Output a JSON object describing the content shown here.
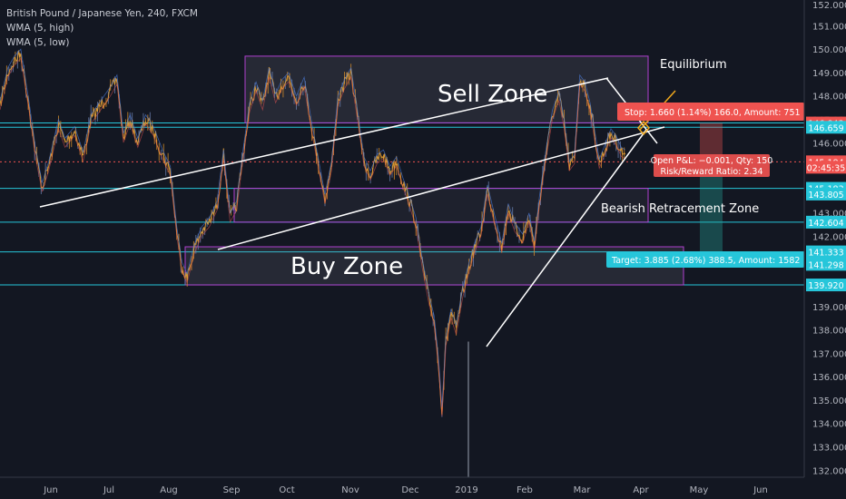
{
  "legend": {
    "symbol": "British Pound / Japanese Yen, 240, FXCM",
    "indicator_high": "WMA (5, high)",
    "indicator_low": "WMA (5, low)"
  },
  "chart_data": {
    "type": "line",
    "title": "British Pound / Japanese Yen, 240, FXCM",
    "series": [
      {
        "x": [
          "May",
          "Jun",
          "Jul",
          "Aug",
          "Sep",
          "Oct",
          "Nov",
          "Dec",
          "2019",
          "Feb",
          "Mar",
          "Apr"
        ],
        "values": [
          148.5,
          147.0,
          148.3,
          145.0,
          147.5,
          148.5,
          146.5,
          144.0,
          137.5,
          143.5,
          147.5,
          145.2
        ]
      }
    ],
    "path_points": [
      [
        0,
        147.6
      ],
      [
        0.012,
        149.0
      ],
      [
        0.022,
        149.5
      ],
      [
        0.032,
        149.8
      ],
      [
        0.045,
        147.5
      ],
      [
        0.055,
        145.5
      ],
      [
        0.065,
        144.1
      ],
      [
        0.075,
        145.0
      ],
      [
        0.09,
        146.8
      ],
      [
        0.1,
        146.0
      ],
      [
        0.115,
        146.5
      ],
      [
        0.128,
        145.4
      ],
      [
        0.14,
        147.0
      ],
      [
        0.155,
        147.6
      ],
      [
        0.17,
        148.2
      ],
      [
        0.18,
        148.7
      ],
      [
        0.19,
        146.2
      ],
      [
        0.2,
        147.0
      ],
      [
        0.212,
        146.0
      ],
      [
        0.224,
        147.0
      ],
      [
        0.236,
        146.5
      ],
      [
        0.25,
        145.5
      ],
      [
        0.262,
        144.8
      ],
      [
        0.272,
        142.2
      ],
      [
        0.28,
        140.7
      ],
      [
        0.288,
        140.2
      ],
      [
        0.298,
        141.4
      ],
      [
        0.31,
        142.2
      ],
      [
        0.322,
        142.6
      ],
      [
        0.334,
        143.3
      ],
      [
        0.344,
        145.5
      ],
      [
        0.354,
        142.8
      ],
      [
        0.364,
        143.3
      ],
      [
        0.374,
        145.5
      ],
      [
        0.384,
        147.5
      ],
      [
        0.394,
        148.4
      ],
      [
        0.404,
        147.6
      ],
      [
        0.414,
        149.0
      ],
      [
        0.424,
        147.9
      ],
      [
        0.434,
        148.5
      ],
      [
        0.444,
        148.8
      ],
      [
        0.456,
        147.8
      ],
      [
        0.468,
        148.6
      ],
      [
        0.48,
        146.6
      ],
      [
        0.49,
        145.1
      ],
      [
        0.5,
        143.6
      ],
      [
        0.51,
        145.0
      ],
      [
        0.52,
        147.8
      ],
      [
        0.53,
        148.5
      ],
      [
        0.54,
        149.0
      ],
      [
        0.55,
        147.2
      ],
      [
        0.56,
        145.2
      ],
      [
        0.57,
        144.6
      ],
      [
        0.58,
        145.3
      ],
      [
        0.59,
        145.5
      ],
      [
        0.6,
        144.8
      ],
      [
        0.61,
        145.2
      ],
      [
        0.62,
        144.3
      ],
      [
        0.63,
        143.5
      ],
      [
        0.64,
        142.6
      ],
      [
        0.65,
        140.8
      ],
      [
        0.66,
        139.3
      ],
      [
        0.668,
        138.4
      ],
      [
        0.675,
        136.5
      ],
      [
        0.68,
        134.5
      ],
      [
        0.686,
        137.5
      ],
      [
        0.694,
        138.7
      ],
      [
        0.702,
        138.0
      ],
      [
        0.712,
        139.6
      ],
      [
        0.72,
        140.5
      ],
      [
        0.73,
        141.5
      ],
      [
        0.74,
        142.2
      ],
      [
        0.75,
        144.0
      ],
      [
        0.762,
        142.6
      ],
      [
        0.772,
        141.5
      ],
      [
        0.782,
        143.2
      ],
      [
        0.792,
        142.4
      ],
      [
        0.804,
        141.9
      ],
      [
        0.814,
        142.8
      ],
      [
        0.822,
        141.6
      ],
      [
        0.83,
        143.5
      ],
      [
        0.84,
        145.5
      ],
      [
        0.85,
        147.2
      ],
      [
        0.86,
        148.0
      ],
      [
        0.868,
        146.8
      ],
      [
        0.876,
        145.0
      ],
      [
        0.884,
        145.3
      ],
      [
        0.892,
        148.7
      ],
      [
        0.9,
        148.4
      ],
      [
        0.908,
        147.5
      ],
      [
        0.914,
        146.5
      ],
      [
        0.922,
        145.1
      ],
      [
        0.932,
        145.8
      ],
      [
        0.94,
        146.4
      ],
      [
        0.948,
        146.1
      ],
      [
        0.956,
        145.6
      ],
      [
        0.962,
        145.5
      ]
    ],
    "xlabel": "",
    "ylabel": "",
    "ylim": [
      131.7,
      152.1
    ],
    "x_ticks": [
      "Jun",
      "Jul",
      "Aug",
      "Sep",
      "Oct",
      "Nov",
      "Dec",
      "2019",
      "Feb",
      "Mar",
      "Apr",
      "May",
      "Jun"
    ],
    "y_ticks": [
      "152.000",
      "151.000",
      "150.000",
      "149.000",
      "148.000",
      "147.000",
      "146.000",
      "145.000",
      "144.000",
      "143.000",
      "142.000",
      "141.000",
      "140.000",
      "139.000",
      "138.000",
      "137.000",
      "136.000",
      "135.000",
      "134.000",
      "133.000",
      "132.000"
    ],
    "price_tags": [
      {
        "label": "146.843",
        "price": 146.843,
        "color": "#ef5350"
      },
      {
        "label": "146.659",
        "price": 146.659,
        "color": "#26c6da"
      },
      {
        "label": "145.184",
        "price": 145.184,
        "color": "#ef5350"
      },
      {
        "label": "02:45:35",
        "price": 144.95,
        "color": "#ef5350"
      },
      {
        "label": "145.183",
        "price": 144.05,
        "color": "#26c6da"
      },
      {
        "label": "143.805",
        "price": 143.805,
        "color": "#26c6da"
      },
      {
        "label": "142.604",
        "price": 142.604,
        "color": "#26c6da"
      },
      {
        "label": "141.333",
        "price": 141.333,
        "color": "#26c6da"
      },
      {
        "label": "141.298",
        "price": 140.8,
        "color": "#26c6da"
      },
      {
        "label": "139.920",
        "price": 139.92,
        "color": "#26c6da"
      }
    ],
    "horizontal_levels": [
      146.843,
      146.659,
      144.05,
      142.604,
      141.333,
      139.92
    ],
    "annotations": {
      "sell_zone": "Sell Zone",
      "buy_zone": "Buy Zone",
      "bearish_zone": "Bearish Retracement Zone",
      "equilibrium": "Equilibrium",
      "stop": "Stop: 1.660 (1.14%) 166.0, Amount: 751",
      "open_pnl": "Open P&L: −0.001, Qty: 150",
      "risk_reward": "Risk/Reward Ratio: 2.34",
      "target": "Target: 3.885 (2.68%) 388.5, Amount: 1582"
    },
    "colors": {
      "background": "#131722",
      "price_line": "#e8a235",
      "zone_border": "#b040d0",
      "trendline": "#ffffff",
      "level_line": "#26c6da",
      "stop_box": "#ef5350",
      "target_box": "#26c6da",
      "equilibrium": "#f0a81c"
    },
    "grid": false,
    "legend_position": "top-left"
  }
}
